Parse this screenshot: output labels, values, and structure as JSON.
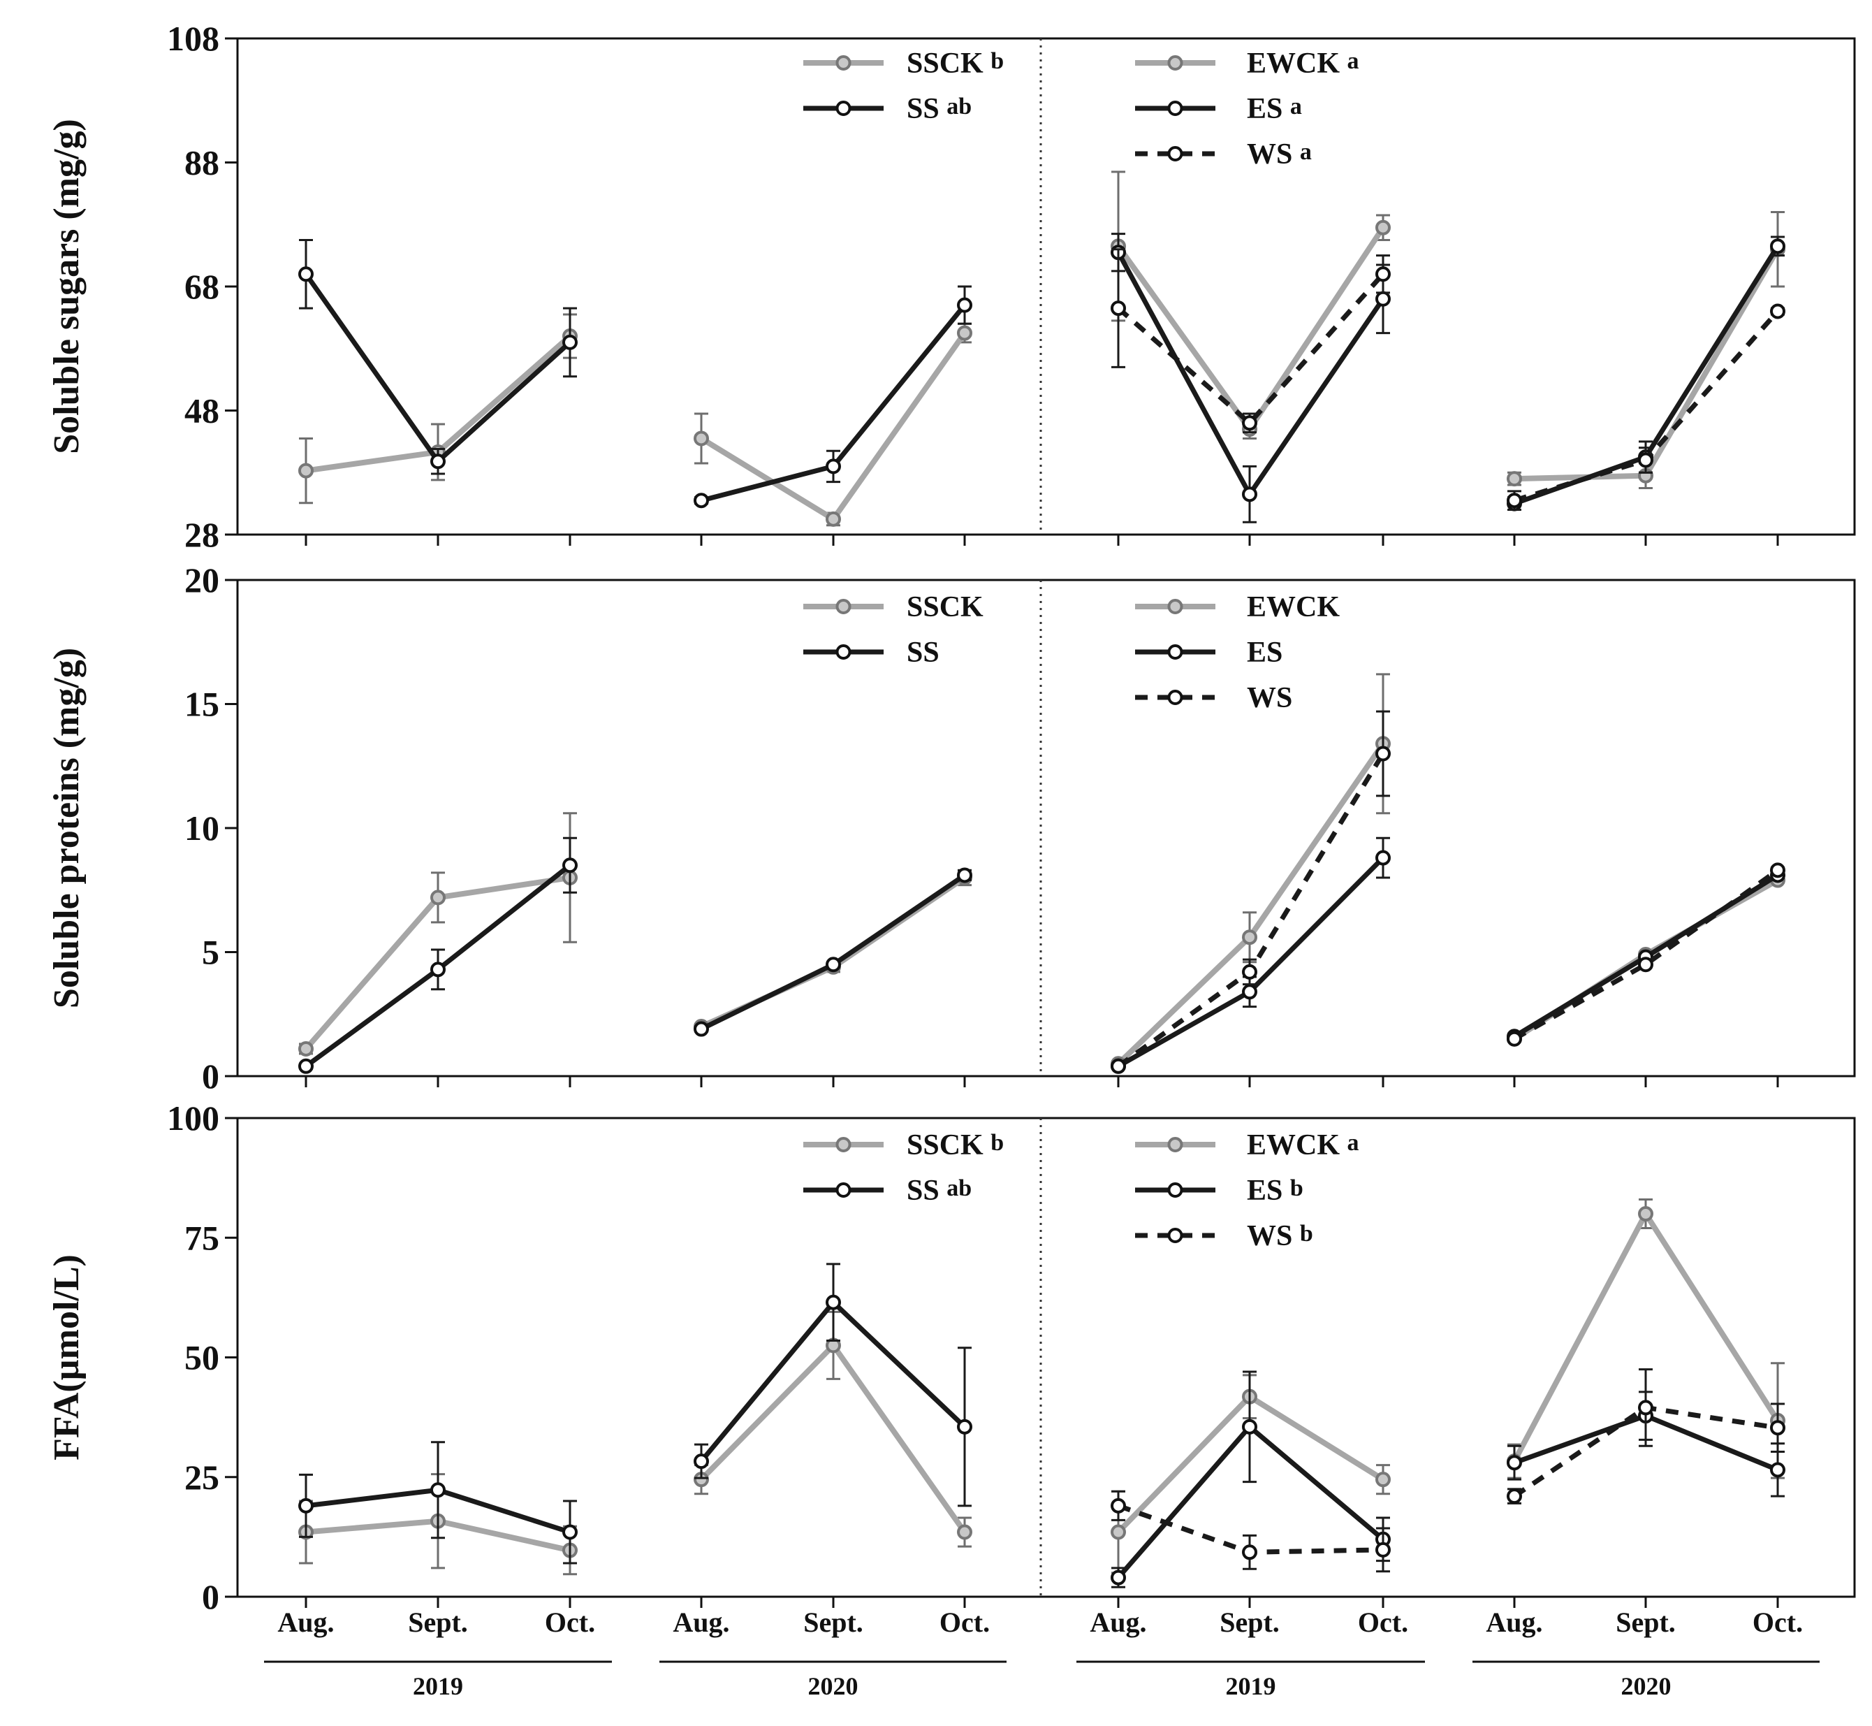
{
  "colors": {
    "SSCK": "#a6a6a6",
    "SS": "#1a1a1a",
    "EWCK": "#a6a6a6",
    "ES": "#1a1a1a",
    "WS": "#1a1a1a",
    "frame": "#111111"
  },
  "x_months": [
    "Aug.",
    "Sept.",
    "Oct."
  ],
  "x_years": [
    "2019",
    "2020",
    "2019",
    "2020"
  ],
  "chart_data": [
    {
      "type": "line",
      "ylabel": "Soluble sugars (mg/g)",
      "ylim": [
        28,
        108
      ],
      "yticks": [
        "108",
        "88",
        "68",
        "48",
        "28"
      ],
      "legend": [
        {
          "key": "SSCK",
          "label": "SSCK",
          "sig": "b"
        },
        {
          "key": "SS",
          "label": "SS",
          "sig": "ab"
        },
        {
          "key": "EWCK",
          "label": "EWCK",
          "sig": "a"
        },
        {
          "key": "ES",
          "label": "ES",
          "sig": "a"
        },
        {
          "key": "WS",
          "label": "WS",
          "sig": "a"
        }
      ],
      "series": [
        {
          "name": "SSCK",
          "group": 0,
          "values": [
            38.3,
            41.3,
            60.0
          ],
          "err": [
            5.2,
            4.5,
            3.5
          ]
        },
        {
          "name": "SS",
          "group": 0,
          "values": [
            70.0,
            39.8,
            59.0
          ],
          "err": [
            5.5,
            2.0,
            5.5
          ]
        },
        {
          "name": "SSCK",
          "group": 1,
          "values": [
            43.5,
            30.5,
            60.5
          ],
          "err": [
            4.0,
            1.0,
            1.5
          ]
        },
        {
          "name": "SS",
          "group": 1,
          "values": [
            33.5,
            39.0,
            65.0
          ],
          "err": [
            0.5,
            2.5,
            3.0
          ]
        },
        {
          "name": "EWCK",
          "group": 2,
          "values": [
            74.5,
            45.0,
            77.5
          ],
          "err": [
            12.0,
            1.5,
            2.0
          ]
        },
        {
          "name": "ES",
          "group": 2,
          "values": [
            73.5,
            34.5,
            66.0
          ],
          "err": [
            3.0,
            4.5,
            5.5
          ]
        },
        {
          "name": "WS",
          "group": 2,
          "values": [
            64.5,
            46.0,
            70.0
          ],
          "err": [
            9.5,
            1.5,
            3.0
          ]
        },
        {
          "name": "EWCK",
          "group": 3,
          "values": [
            37.0,
            37.5,
            74.0
          ],
          "err": [
            1.0,
            2.0,
            6.0
          ]
        },
        {
          "name": "ES",
          "group": 3,
          "values": [
            33.0,
            40.5,
            74.5
          ],
          "err": [
            1.0,
            2.5,
            1.5
          ]
        },
        {
          "name": "WS",
          "group": 3,
          "values": [
            33.5,
            40.0,
            64.0
          ],
          "err": [
            1.5,
            2.0,
            0.5
          ]
        }
      ]
    },
    {
      "type": "line",
      "ylabel": "Soluble proteins (mg/g)",
      "ylim": [
        0,
        20
      ],
      "yticks": [
        "20",
        "15",
        "10",
        "5",
        "0"
      ],
      "legend": [
        {
          "key": "SSCK",
          "label": "SSCK",
          "sig": ""
        },
        {
          "key": "SS",
          "label": "SS",
          "sig": ""
        },
        {
          "key": "EWCK",
          "label": "EWCK",
          "sig": ""
        },
        {
          "key": "ES",
          "label": "ES",
          "sig": ""
        },
        {
          "key": "WS",
          "label": "WS",
          "sig": ""
        }
      ],
      "series": [
        {
          "name": "SSCK",
          "group": 0,
          "values": [
            1.1,
            7.2,
            8.0
          ],
          "err": [
            0.2,
            1.0,
            2.6
          ]
        },
        {
          "name": "SS",
          "group": 0,
          "values": [
            0.4,
            4.3,
            8.5
          ],
          "err": [
            0.1,
            0.8,
            1.1
          ]
        },
        {
          "name": "SSCK",
          "group": 1,
          "values": [
            2.0,
            4.4,
            8.0
          ],
          "err": [
            0.1,
            0.2,
            0.3
          ]
        },
        {
          "name": "SS",
          "group": 1,
          "values": [
            1.9,
            4.5,
            8.1
          ],
          "err": [
            0.1,
            0.1,
            0.2
          ]
        },
        {
          "name": "EWCK",
          "group": 2,
          "values": [
            0.5,
            5.6,
            13.4
          ],
          "err": [
            0.1,
            1.0,
            2.8
          ]
        },
        {
          "name": "ES",
          "group": 2,
          "values": [
            0.4,
            3.4,
            8.8
          ],
          "err": [
            0.1,
            0.6,
            0.8
          ]
        },
        {
          "name": "WS",
          "group": 2,
          "values": [
            0.4,
            4.2,
            13.0
          ],
          "err": [
            0.1,
            0.5,
            1.7
          ]
        },
        {
          "name": "EWCK",
          "group": 3,
          "values": [
            1.5,
            4.9,
            7.9
          ],
          "err": [
            0.1,
            0.1,
            0.1
          ]
        },
        {
          "name": "ES",
          "group": 3,
          "values": [
            1.6,
            4.8,
            8.1
          ],
          "err": [
            0.1,
            0.1,
            0.1
          ]
        },
        {
          "name": "WS",
          "group": 3,
          "values": [
            1.5,
            4.5,
            8.3
          ],
          "err": [
            0.1,
            0.1,
            0.1
          ]
        }
      ]
    },
    {
      "type": "line",
      "ylabel": "FFA(µmol/L)",
      "ylim": [
        0,
        100
      ],
      "yticks": [
        "100",
        "75",
        "50",
        "25",
        "0"
      ],
      "legend": [
        {
          "key": "SSCK",
          "label": "SSCK",
          "sig": "b"
        },
        {
          "key": "SS",
          "label": "SS",
          "sig": "ab"
        },
        {
          "key": "EWCK",
          "label": "EWCK",
          "sig": "a"
        },
        {
          "key": "ES",
          "label": "ES",
          "sig": "b"
        },
        {
          "key": "WS",
          "label": "WS",
          "sig": "b"
        }
      ],
      "series": [
        {
          "name": "SSCK",
          "group": 0,
          "values": [
            13.5,
            15.8,
            9.7
          ],
          "err": [
            6.5,
            9.8,
            5.0
          ]
        },
        {
          "name": "SS",
          "group": 0,
          "values": [
            19.0,
            22.3,
            13.5
          ],
          "err": [
            6.5,
            10.0,
            6.5
          ]
        },
        {
          "name": "SSCK",
          "group": 1,
          "values": [
            24.5,
            52.5,
            13.5
          ],
          "err": [
            3.0,
            7.0,
            3.0
          ]
        },
        {
          "name": "SS",
          "group": 1,
          "values": [
            28.3,
            61.5,
            35.5
          ],
          "err": [
            3.5,
            8.0,
            16.5
          ]
        },
        {
          "name": "EWCK",
          "group": 2,
          "values": [
            13.5,
            41.8,
            24.5
          ],
          "err": [
            8.5,
            4.5,
            3.0
          ]
        },
        {
          "name": "ES",
          "group": 2,
          "values": [
            4.0,
            35.5,
            12.0
          ],
          "err": [
            2.0,
            11.5,
            4.5
          ]
        },
        {
          "name": "WS",
          "group": 2,
          "values": [
            19.0,
            9.3,
            9.8
          ],
          "err": [
            3.0,
            3.5,
            4.5
          ]
        },
        {
          "name": "EWCK",
          "group": 3,
          "values": [
            28.3,
            80.0,
            36.8
          ],
          "err": [
            3.5,
            3.0,
            12.0
          ]
        },
        {
          "name": "ES",
          "group": 3,
          "values": [
            28.0,
            37.8,
            26.5
          ],
          "err": [
            3.5,
            5.0,
            5.5
          ]
        },
        {
          "name": "WS",
          "group": 3,
          "values": [
            21.0,
            39.5,
            35.3
          ],
          "err": [
            1.5,
            8.0,
            5.0
          ]
        }
      ]
    }
  ]
}
